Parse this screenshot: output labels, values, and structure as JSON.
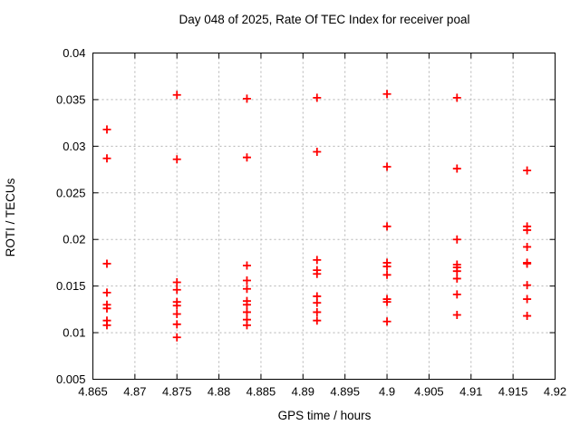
{
  "chart_data": {
    "type": "scatter",
    "title": "Day 048 of 2025, Rate Of TEC Index for receiver poal",
    "xlabel": "GPS time / hours",
    "ylabel": "ROTI / TECUs",
    "xlim": [
      4.865,
      4.92
    ],
    "ylim": [
      0.005,
      0.04
    ],
    "xticks": [
      4.865,
      4.87,
      4.875,
      4.88,
      4.885,
      4.89,
      4.895,
      4.9,
      4.905,
      4.91,
      4.915,
      4.92
    ],
    "xtick_labels": [
      "4.865",
      "4.87",
      "4.875",
      "4.88",
      "4.885",
      "4.89",
      "4.895",
      "4.9",
      "4.905",
      "4.91",
      "4.915",
      "4.92"
    ],
    "yticks": [
      0.005,
      0.01,
      0.015,
      0.02,
      0.025,
      0.03,
      0.035,
      0.04
    ],
    "ytick_labels": [
      "0.005",
      "0.01",
      "0.015",
      "0.02",
      "0.025",
      "0.03",
      "0.035",
      "0.04"
    ],
    "grid": true,
    "legend": false,
    "colors": {
      "marker": "#ff0000",
      "grid": "#b3b3b3",
      "axis": "#000000",
      "background": "#ffffff"
    },
    "marker": {
      "shape": "plus",
      "size": 9,
      "stroke_width": 1.8
    },
    "series": [
      {
        "name": "ROTI",
        "points": [
          [
            4.86667,
            0.0318
          ],
          [
            4.86667,
            0.0287
          ],
          [
            4.86667,
            0.0174
          ],
          [
            4.86667,
            0.0143
          ],
          [
            4.86667,
            0.013
          ],
          [
            4.86667,
            0.0126
          ],
          [
            4.86667,
            0.0113
          ],
          [
            4.86667,
            0.0108
          ],
          [
            4.875,
            0.0355
          ],
          [
            4.875,
            0.0286
          ],
          [
            4.875,
            0.0154
          ],
          [
            4.875,
            0.0146
          ],
          [
            4.875,
            0.0133
          ],
          [
            4.875,
            0.0129
          ],
          [
            4.875,
            0.012
          ],
          [
            4.875,
            0.0109
          ],
          [
            4.875,
            0.0095
          ],
          [
            4.88333,
            0.0351
          ],
          [
            4.88333,
            0.0288
          ],
          [
            4.88333,
            0.0172
          ],
          [
            4.88333,
            0.0156
          ],
          [
            4.88333,
            0.0147
          ],
          [
            4.88333,
            0.0134
          ],
          [
            4.88333,
            0.013
          ],
          [
            4.88333,
            0.0122
          ],
          [
            4.88333,
            0.0114
          ],
          [
            4.88333,
            0.0108
          ],
          [
            4.89167,
            0.0352
          ],
          [
            4.89167,
            0.0294
          ],
          [
            4.89167,
            0.0178
          ],
          [
            4.89167,
            0.0167
          ],
          [
            4.89167,
            0.0163
          ],
          [
            4.89167,
            0.0139
          ],
          [
            4.89167,
            0.0132
          ],
          [
            4.89167,
            0.0122
          ],
          [
            4.89167,
            0.0113
          ],
          [
            4.9,
            0.0356
          ],
          [
            4.9,
            0.0278
          ],
          [
            4.9,
            0.0214
          ],
          [
            4.9,
            0.0175
          ],
          [
            4.9,
            0.0171
          ],
          [
            4.9,
            0.0162
          ],
          [
            4.9,
            0.0136
          ],
          [
            4.9,
            0.0133
          ],
          [
            4.9,
            0.0112
          ],
          [
            4.90833,
            0.0352
          ],
          [
            4.90833,
            0.0276
          ],
          [
            4.90833,
            0.02
          ],
          [
            4.90833,
            0.0173
          ],
          [
            4.90833,
            0.017
          ],
          [
            4.90833,
            0.0166
          ],
          [
            4.90833,
            0.0158
          ],
          [
            4.90833,
            0.0141
          ],
          [
            4.90833,
            0.0119
          ],
          [
            4.91667,
            0.0274
          ],
          [
            4.91667,
            0.0214
          ],
          [
            4.91667,
            0.021
          ],
          [
            4.91667,
            0.0192
          ],
          [
            4.91667,
            0.0175
          ],
          [
            4.91667,
            0.0174
          ],
          [
            4.91667,
            0.0151
          ],
          [
            4.91667,
            0.0136
          ],
          [
            4.91667,
            0.0118
          ]
        ]
      }
    ]
  }
}
